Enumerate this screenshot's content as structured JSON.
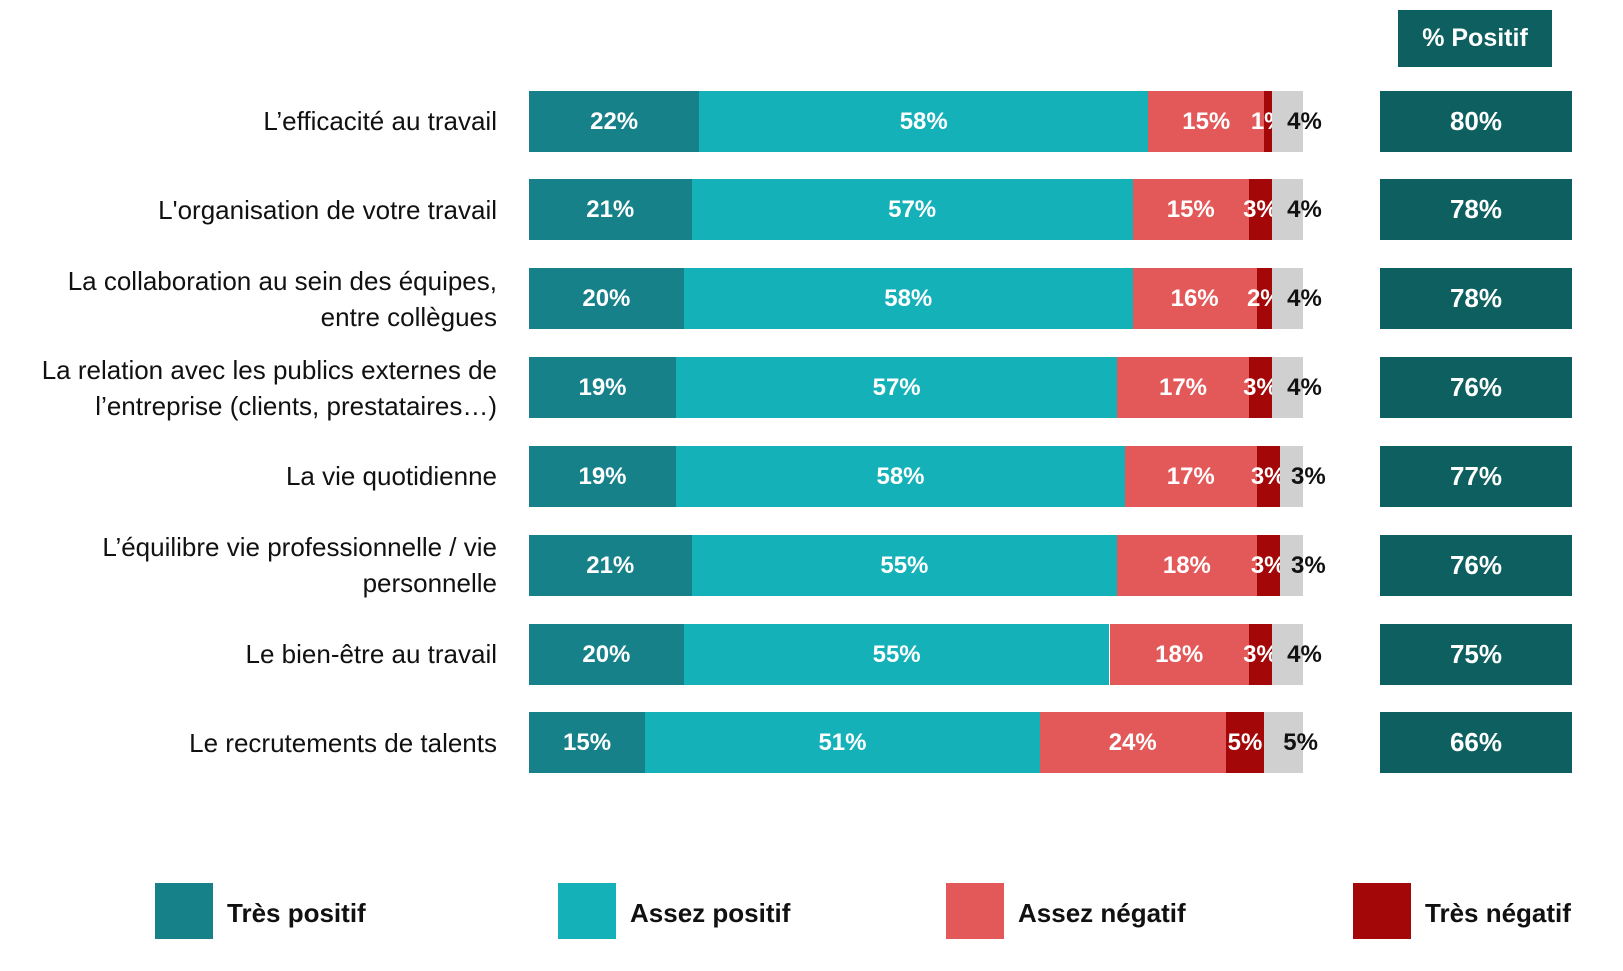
{
  "chart_data": {
    "type": "stacked-barh",
    "categories": [
      "L’efficacité au travail",
      "L'organisation de votre travail",
      "La collaboration au sein des équipes, entre collègues",
      "La relation avec les publics externes de l’entreprise (clients, prestataires…)",
      "La vie quotidienne",
      "L’équilibre vie professionnelle / vie personnelle",
      "Le bien-être au travail",
      "Le recrutements de talents"
    ],
    "xlim": [
      0,
      100
    ],
    "series": [
      {
        "name": "Très positif",
        "color": "#17818a",
        "values": [
          22,
          21,
          20,
          19,
          19,
          21,
          20,
          15
        ],
        "value_labels": [
          "22%",
          "21%",
          "20%",
          "19%",
          "19%",
          "21%",
          "20%",
          "15%"
        ]
      },
      {
        "name": "Assez positif",
        "color": "#15b1b9",
        "values": [
          58,
          57,
          58,
          57,
          58,
          55,
          55,
          51
        ],
        "value_labels": [
          "58%",
          "57%",
          "58%",
          "57%",
          "58%",
          "55%",
          "55%",
          "51%"
        ]
      },
      {
        "name": "Assez négatif",
        "color": "#e35858",
        "values": [
          15,
          15,
          16,
          17,
          17,
          18,
          18,
          24
        ],
        "value_labels": [
          "15%",
          "15%",
          "16%",
          "17%",
          "17%",
          "18%",
          "18%",
          "24%"
        ]
      },
      {
        "name": "Très négatif",
        "color": "#a30707",
        "values": [
          1,
          3,
          2,
          3,
          3,
          3,
          3,
          5
        ],
        "value_labels": [
          "1%",
          "3%",
          "2%",
          "3%",
          "3%",
          "3%",
          "3%",
          "5%"
        ]
      },
      {
        "color": "#d0d0d0",
        "values": [
          4,
          4,
          4,
          4,
          3,
          3,
          4,
          5
        ],
        "value_labels": [
          "4%",
          "4%",
          "4%",
          "4%",
          "3%",
          "3%",
          "4%",
          "5%"
        ]
      }
    ],
    "totals": {
      "title": "% Positif",
      "color": "#0e5f5f",
      "values": [
        80,
        78,
        78,
        76,
        77,
        76,
        75,
        66
      ],
      "value_labels": [
        "80%",
        "78%",
        "78%",
        "76%",
        "77%",
        "76%",
        "75%",
        "66%"
      ]
    }
  }
}
